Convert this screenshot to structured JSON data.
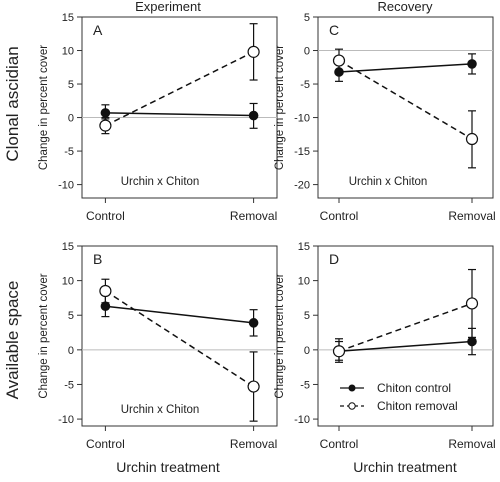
{
  "figure": {
    "col_titles": [
      "Experiment",
      "Recovery"
    ],
    "row_titles": [
      "Clonal ascidian",
      "Available space"
    ],
    "ylabel": "Change in percent cover",
    "xlabel": "Urchin treatment"
  },
  "legend": {
    "position": "bottom-right of panel D",
    "items": [
      {
        "label": "Chiton control",
        "style": "solid",
        "marker": "filled-circle"
      },
      {
        "label": "Chiton removal",
        "style": "dashed",
        "marker": "open-circle"
      }
    ]
  },
  "chart_data": [
    {
      "panel": "A",
      "type": "line",
      "annotation": "Urchin x Chiton",
      "categories": [
        "Control",
        "Removal"
      ],
      "ylim": [
        -12,
        15
      ],
      "yticks": [
        -10,
        -5,
        0,
        5,
        10,
        15
      ],
      "series": [
        {
          "name": "Chiton control",
          "values": [
            0.7,
            0.3
          ],
          "err_low": [
            -0.2,
            -1.6
          ],
          "err_high": [
            1.9,
            2.1
          ]
        },
        {
          "name": "Chiton removal",
          "values": [
            -1.2,
            9.8
          ],
          "err_low": [
            -2.4,
            5.6
          ],
          "err_high": [
            0.0,
            14.0
          ]
        }
      ]
    },
    {
      "panel": "C",
      "type": "line",
      "annotation": "Urchin x Chiton",
      "categories": [
        "Control",
        "Removal"
      ],
      "ylim": [
        -22,
        5
      ],
      "yticks": [
        -20,
        -15,
        -10,
        -5,
        0,
        5
      ],
      "series": [
        {
          "name": "Chiton control",
          "values": [
            -3.2,
            -2.0
          ],
          "err_low": [
            -4.6,
            -3.5
          ],
          "err_high": [
            -1.8,
            -0.5
          ]
        },
        {
          "name": "Chiton removal",
          "values": [
            -1.5,
            -13.2
          ],
          "err_low": [
            -3.3,
            -17.5
          ],
          "err_high": [
            0.2,
            -9.0
          ]
        }
      ]
    },
    {
      "panel": "B",
      "type": "line",
      "annotation": "Urchin x Chiton",
      "categories": [
        "Control",
        "Removal"
      ],
      "ylim": [
        -11,
        15
      ],
      "yticks": [
        -10,
        -5,
        0,
        5,
        10,
        15
      ],
      "series": [
        {
          "name": "Chiton control",
          "values": [
            6.3,
            3.9
          ],
          "err_low": [
            4.8,
            2.0
          ],
          "err_high": [
            7.9,
            5.8
          ]
        },
        {
          "name": "Chiton removal",
          "values": [
            8.5,
            -5.3
          ],
          "err_low": [
            6.8,
            -10.3
          ],
          "err_high": [
            10.2,
            -0.3
          ]
        }
      ]
    },
    {
      "panel": "D",
      "type": "line",
      "annotation": "",
      "categories": [
        "Control",
        "Removal"
      ],
      "ylim": [
        -11,
        15
      ],
      "yticks": [
        -10,
        -5,
        0,
        5,
        10,
        15
      ],
      "series": [
        {
          "name": "Chiton control",
          "values": [
            -0.2,
            1.2
          ],
          "err_low": [
            -1.5,
            -0.7
          ],
          "err_high": [
            1.2,
            3.1
          ]
        },
        {
          "name": "Chiton removal",
          "values": [
            -0.2,
            6.7
          ],
          "err_low": [
            -1.8,
            1.8
          ],
          "err_high": [
            1.6,
            11.6
          ]
        }
      ]
    }
  ]
}
